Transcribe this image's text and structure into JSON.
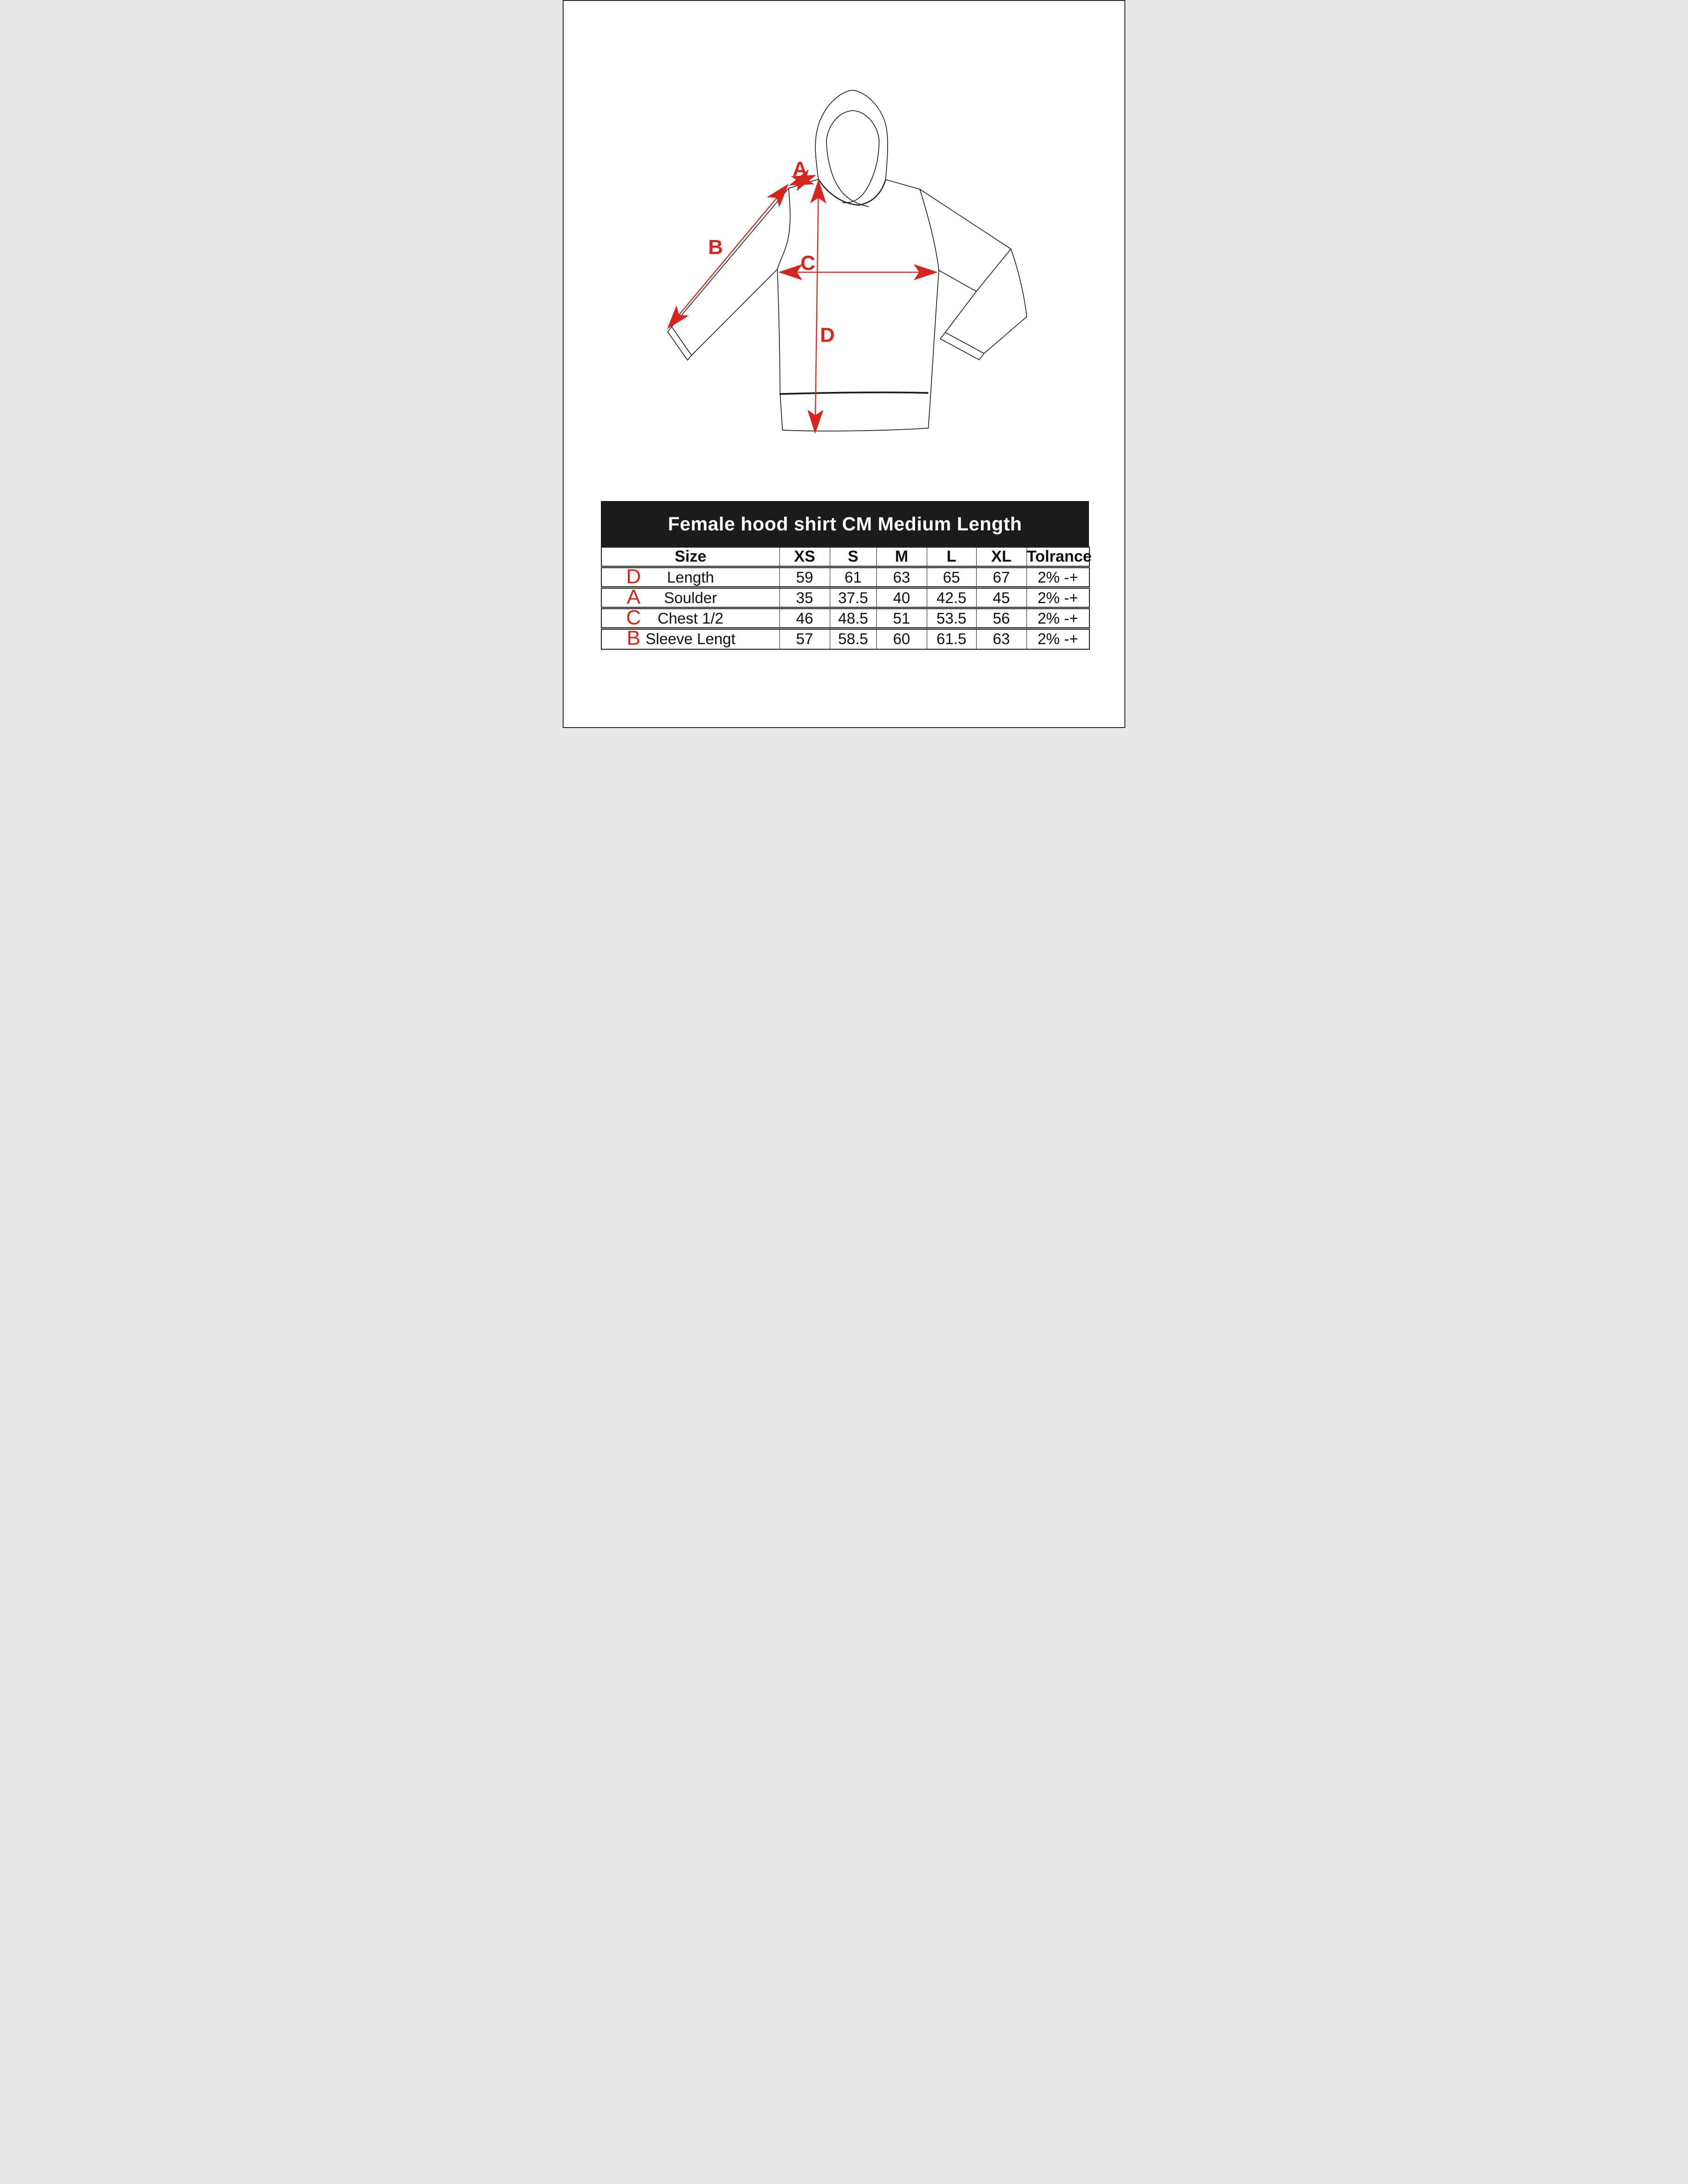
{
  "page": {
    "background": "#ffffff",
    "frame_color": "#2b2b2b"
  },
  "diagram": {
    "subject": "hoodie-front-technical-sketch",
    "line_color": "#1c1c1c",
    "accent_color": "#d6251d",
    "measure_labels": {
      "a": "A",
      "b": "B",
      "c": "C",
      "d": "D"
    }
  },
  "table": {
    "title": "Female hood shirt CM Medium Length",
    "title_bg": "#1b1b1b",
    "title_color": "#ffffff",
    "columns": [
      "Size",
      "XS",
      "S",
      "M",
      "L",
      "XL",
      "Tolrance"
    ],
    "rows": [
      {
        "letter": "D",
        "label": "Length",
        "values": [
          "59",
          "61",
          "63",
          "65",
          "67",
          "2% -+"
        ]
      },
      {
        "letter": "A",
        "label": "Soulder",
        "values": [
          "35",
          "37.5",
          "40",
          "42.5",
          "45",
          "2% -+"
        ]
      },
      {
        "letter": "C",
        "label": "Chest 1/2",
        "values": [
          "46",
          "48.5",
          "51",
          "53.5",
          "56",
          "2% -+"
        ]
      },
      {
        "letter": "B",
        "label": "Sleeve Lengt",
        "values": [
          "57",
          "58.5",
          "60",
          "61.5",
          "63",
          "2% -+"
        ]
      }
    ]
  }
}
